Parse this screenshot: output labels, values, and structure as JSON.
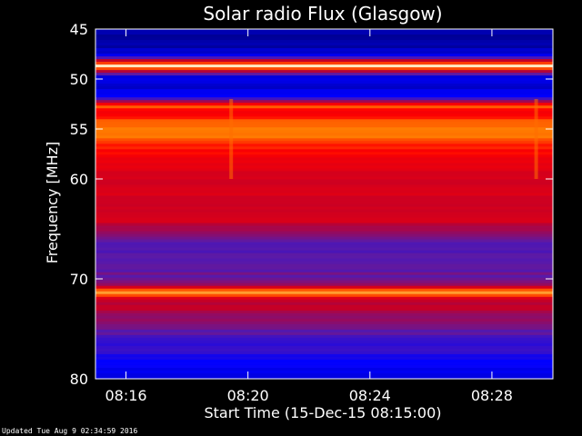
{
  "footer": "Updated Tue Aug  9 02:34:59 2016",
  "chart_data": {
    "type": "heatmap",
    "title": "Solar radio Flux (Glasgow)",
    "xlabel": "Start Time (15-Dec-15 08:15:00)",
    "ylabel": "Frequency [MHz]",
    "xlim": [
      "08:15:00",
      "08:30:00"
    ],
    "ylim": [
      45,
      80
    ],
    "x_ticks": [
      "08:16",
      "08:20",
      "08:24",
      "08:28"
    ],
    "y_ticks": [
      45,
      50,
      55,
      60,
      70,
      80
    ],
    "colormap": [
      "#00007a",
      "#0000ff",
      "#5a1aa8",
      "#c0002a",
      "#ff0000",
      "#ff7a00",
      "#ffd27a",
      "#ffffff"
    ],
    "frequency_profile": [
      {
        "freq": 45.0,
        "level": 0.06
      },
      {
        "freq": 46.0,
        "level": 0.05
      },
      {
        "freq": 47.5,
        "level": 0.08
      },
      {
        "freq": 48.3,
        "level": 0.5
      },
      {
        "freq": 48.7,
        "level": 0.97
      },
      {
        "freq": 49.1,
        "level": 0.5
      },
      {
        "freq": 49.8,
        "level": 0.12
      },
      {
        "freq": 51.5,
        "level": 0.1
      },
      {
        "freq": 52.2,
        "level": 0.32
      },
      {
        "freq": 52.7,
        "level": 0.72
      },
      {
        "freq": 53.2,
        "level": 0.52
      },
      {
        "freq": 54.5,
        "level": 0.7
      },
      {
        "freq": 55.5,
        "level": 0.73
      },
      {
        "freq": 57.0,
        "level": 0.58
      },
      {
        "freq": 59.0,
        "level": 0.5
      },
      {
        "freq": 61.0,
        "level": 0.48
      },
      {
        "freq": 63.0,
        "level": 0.45
      },
      {
        "freq": 64.0,
        "level": 0.5
      },
      {
        "freq": 65.5,
        "level": 0.33
      },
      {
        "freq": 66.5,
        "level": 0.25
      },
      {
        "freq": 67.5,
        "level": 0.3
      },
      {
        "freq": 69.0,
        "level": 0.28
      },
      {
        "freq": 70.5,
        "level": 0.34
      },
      {
        "freq": 71.4,
        "level": 0.78
      },
      {
        "freq": 72.0,
        "level": 0.45
      },
      {
        "freq": 73.5,
        "level": 0.4
      },
      {
        "freq": 75.0,
        "level": 0.3
      },
      {
        "freq": 77.0,
        "level": 0.22
      },
      {
        "freq": 78.5,
        "level": 0.16
      },
      {
        "freq": 80.0,
        "level": 0.12
      }
    ],
    "vertical_features": [
      {
        "time": "08:19:27",
        "level": 0.7
      },
      {
        "time": "08:29:27",
        "level": 0.7
      }
    ]
  }
}
